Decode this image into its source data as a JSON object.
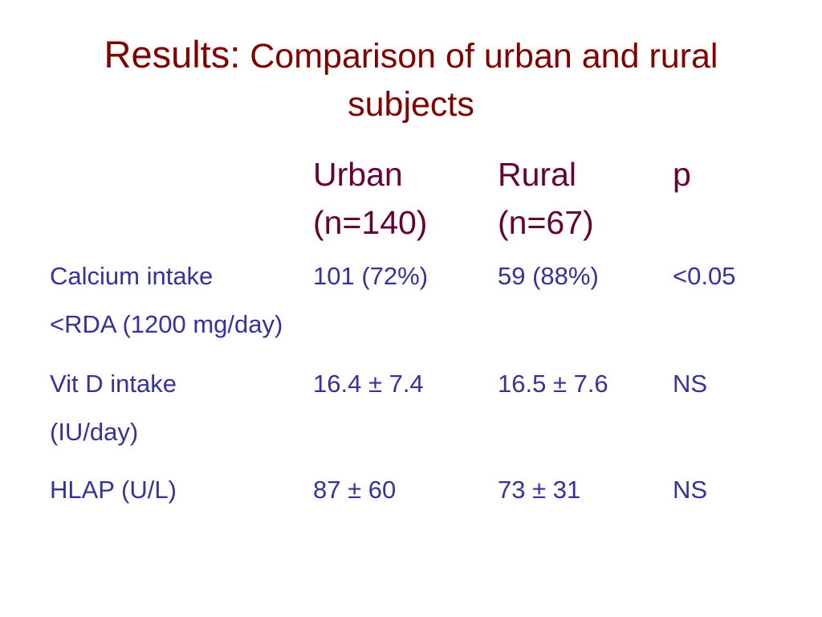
{
  "title": {
    "lead": "Results:",
    "text": "Comparison of urban and rural subjects"
  },
  "table": {
    "columns": [
      "Urban",
      "Rural",
      "p"
    ],
    "sample_sizes": [
      "(n=140)",
      "(n=67)"
    ],
    "rows": [
      {
        "label": [
          "Calcium intake",
          "<RDA (1200 mg/day)"
        ],
        "cells": [
          "101 (72%)",
          "59 (88%)",
          "<0.05"
        ]
      },
      {
        "label": [
          "Vit D intake",
          "(IU/day)"
        ],
        "cells": [
          "16.4 ± 7.4",
          "16.5 ± 7.6",
          "NS"
        ]
      },
      {
        "label": [
          "HLAP (U/L)"
        ],
        "cells": [
          "87 ± 60",
          "73 ± 31",
          "NS"
        ]
      }
    ]
  }
}
